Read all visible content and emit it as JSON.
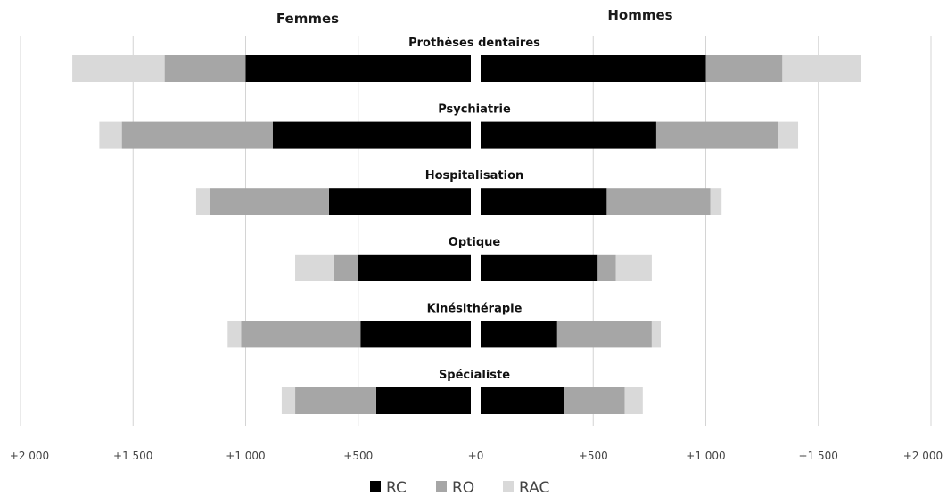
{
  "chart_data": {
    "type": "bar",
    "orientation": "horizontal",
    "layout": "diverging-stacked",
    "panels": [
      "Femmes",
      "Hommes"
    ],
    "categories": [
      "Prothèses dentaires",
      "Psychiatrie",
      "Hospitalisation",
      "Optique",
      "Kinésithérapie",
      "Spécialiste"
    ],
    "series": [
      {
        "name": "RC",
        "color": "#000000",
        "femmes": [
          1000,
          880,
          630,
          500,
          490,
          420
        ],
        "hommes": [
          1000,
          780,
          560,
          520,
          340,
          370
        ]
      },
      {
        "name": "RO",
        "color": "#a6a6a6",
        "femmes": [
          360,
          670,
          530,
          110,
          530,
          360
        ],
        "hommes": [
          340,
          540,
          460,
          80,
          420,
          270
        ]
      },
      {
        "name": "RAC",
        "color": "#d9d9d9",
        "femmes": [
          410,
          100,
          60,
          170,
          60,
          60
        ],
        "hommes": [
          350,
          90,
          50,
          160,
          40,
          80
        ]
      }
    ],
    "xlim": [
      -2000,
      2000
    ],
    "tick_values": [
      -2000,
      -1500,
      -1000,
      -500,
      0,
      500,
      1000,
      1500,
      2000
    ],
    "tick_labels": [
      "+2 000",
      "+1 500",
      "+1 000",
      "+500",
      "+0",
      "+500",
      "+1 000",
      "+1 500",
      "+2 000"
    ],
    "grid": "vertical",
    "legend": "bottom-center"
  }
}
